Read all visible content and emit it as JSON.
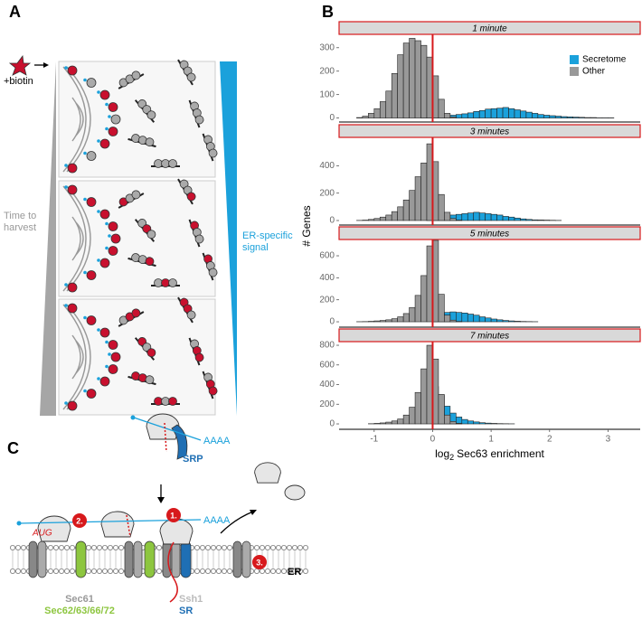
{
  "figure": {
    "panel_labels": [
      "A",
      "B",
      "C"
    ],
    "panel_a": {
      "treatment": "+biotin",
      "left_gradient": "Time to harvest",
      "right_gradient": "ER-specific signal"
    },
    "panel_c": {
      "polya": [
        "AAAA",
        "AAAA"
      ],
      "srp": "SRP",
      "steps": [
        "1.",
        "2.",
        "3."
      ],
      "start_codon": "AUG",
      "translocon": "Sec61",
      "complex": "Sec62/63/66/72",
      "ssh1": "Ssh1",
      "sr": "SR",
      "er": "ER"
    }
  },
  "chart_data": [
    {
      "type": "histogram",
      "title": "1 minute",
      "ylabel": "# Genes",
      "legend": "top-right",
      "vline": 0,
      "vline_color": "#d7191c",
      "xlim": [
        -1.6,
        3.55
      ],
      "ylim": [
        -17,
        357
      ],
      "yticks": [
        0,
        100,
        200,
        300
      ],
      "bins": [
        -1.3,
        -1.2,
        -1.1,
        -1,
        -0.9,
        -0.8,
        -0.7,
        -0.6,
        -0.5,
        -0.4,
        -0.3,
        -0.2,
        -0.1,
        0,
        0.1,
        0.2,
        0.3,
        0.4,
        0.5,
        0.6,
        0.7,
        0.8,
        0.9,
        1,
        1.1,
        1.2,
        1.3,
        1.4,
        1.5,
        1.6,
        1.7,
        1.8,
        1.9,
        2,
        2.1,
        2.2,
        2.3,
        2.4,
        2.5,
        2.6,
        2.7,
        2.8,
        2.9,
        3,
        3.1,
        3.2
      ],
      "series": [
        {
          "name": "Secretome",
          "color": "#1ba1db",
          "values": [
            0,
            0,
            0,
            0,
            0,
            0,
            0,
            0,
            0,
            0,
            0,
            2,
            3,
            5,
            8,
            10,
            12,
            15,
            18,
            22,
            28,
            32,
            38,
            40,
            42,
            45,
            40,
            35,
            30,
            25,
            20,
            15,
            12,
            10,
            8,
            6,
            5,
            4,
            3,
            2,
            2,
            1,
            1,
            1,
            0
          ]
        },
        {
          "name": "Other",
          "color": "#999999",
          "values": [
            2,
            8,
            20,
            40,
            70,
            115,
            190,
            270,
            320,
            340,
            330,
            310,
            260,
            180,
            80,
            20,
            5,
            0,
            0,
            0,
            0,
            0,
            0,
            0,
            0,
            0,
            0,
            0,
            0,
            0,
            0,
            0,
            0,
            0,
            0,
            0,
            0,
            0,
            0,
            0,
            0,
            0,
            0,
            0,
            0
          ]
        }
      ]
    },
    {
      "type": "histogram",
      "title": "3 minutes",
      "vline": 0,
      "vline_color": "#d7191c",
      "xlim": [
        -1.6,
        3.55
      ],
      "ylim": [
        -33,
        607
      ],
      "yticks": [
        0,
        200,
        400
      ],
      "bins": [
        -1.3,
        -1.2,
        -1.1,
        -1,
        -0.9,
        -0.8,
        -0.7,
        -0.6,
        -0.5,
        -0.4,
        -0.3,
        -0.2,
        -0.1,
        0,
        0.1,
        0.2,
        0.3,
        0.4,
        0.5,
        0.6,
        0.7,
        0.8,
        0.9,
        1,
        1.1,
        1.2,
        1.3,
        1.4,
        1.5,
        1.6,
        1.7,
        1.8,
        1.9,
        2,
        2.1,
        2.2,
        2.3,
        2.4,
        2.5,
        2.6,
        2.7,
        2.8,
        2.9,
        3,
        3.1,
        3.2
      ],
      "series": [
        {
          "name": "Secretome",
          "color": "#1ba1db",
          "values": [
            0,
            0,
            0,
            0,
            0,
            0,
            0,
            0,
            0,
            0,
            0,
            0,
            5,
            20,
            30,
            35,
            40,
            45,
            50,
            55,
            60,
            55,
            50,
            45,
            40,
            30,
            25,
            18,
            12,
            8,
            5,
            4,
            3,
            2,
            1,
            0,
            0,
            0,
            0,
            0,
            0,
            0,
            0,
            0,
            0
          ]
        },
        {
          "name": "Other",
          "color": "#999999",
          "values": [
            1,
            3,
            8,
            15,
            25,
            40,
            65,
            100,
            150,
            220,
            320,
            420,
            560,
            430,
            190,
            60,
            15,
            3,
            0,
            0,
            0,
            0,
            0,
            0,
            0,
            0,
            0,
            0,
            0,
            0,
            0,
            0,
            0,
            0,
            0,
            0,
            0,
            0,
            0,
            0,
            0,
            0,
            0,
            0,
            0
          ]
        }
      ]
    },
    {
      "type": "histogram",
      "title": "5 minutes",
      "vline": 0,
      "vline_color": "#d7191c",
      "xlim": [
        -1.6,
        3.55
      ],
      "ylim": [
        -49,
        748
      ],
      "yticks": [
        0,
        200,
        400,
        600
      ],
      "bins": [
        -1.3,
        -1.2,
        -1.1,
        -1,
        -0.9,
        -0.8,
        -0.7,
        -0.6,
        -0.5,
        -0.4,
        -0.3,
        -0.2,
        -0.1,
        0,
        0.1,
        0.2,
        0.3,
        0.4,
        0.5,
        0.6,
        0.7,
        0.8,
        0.9,
        1,
        1.1,
        1.2,
        1.3,
        1.4,
        1.5,
        1.6,
        1.7,
        1.8,
        1.9,
        2,
        2.1,
        2.2,
        2.3,
        2.4,
        2.5,
        2.6,
        2.7,
        2.8,
        2.9,
        3,
        3.1,
        3.2
      ],
      "series": [
        {
          "name": "Secretome",
          "color": "#1ba1db",
          "values": [
            0,
            0,
            0,
            0,
            0,
            0,
            0,
            0,
            0,
            0,
            0,
            0,
            0,
            30,
            60,
            85,
            90,
            85,
            80,
            70,
            60,
            45,
            35,
            25,
            18,
            12,
            8,
            5,
            3,
            2,
            1,
            0,
            0,
            0,
            0,
            0,
            0,
            0,
            0,
            0,
            0,
            0,
            0,
            0,
            0
          ]
        },
        {
          "name": "Other",
          "color": "#999999",
          "values": [
            1,
            2,
            4,
            8,
            12,
            18,
            28,
            45,
            75,
            130,
            240,
            420,
            690,
            740,
            250,
            60,
            15,
            3,
            0,
            0,
            0,
            0,
            0,
            0,
            0,
            0,
            0,
            0,
            0,
            0,
            0,
            0,
            0,
            0,
            0,
            0,
            0,
            0,
            0,
            0,
            0,
            0,
            0,
            0,
            0
          ]
        }
      ]
    },
    {
      "type": "histogram",
      "title": "7 minutes",
      "xlabel": {
        "prefix": "log",
        "subscript": "2",
        "text": "Sec63 enrichment"
      },
      "vline": 0,
      "vline_color": "#d7191c",
      "xlim": [
        -1.6,
        3.55
      ],
      "ylim": [
        -55,
        837
      ],
      "yticks": [
        0,
        200,
        400,
        600,
        800
      ],
      "xticks": [
        -1,
        0,
        1,
        2,
        3
      ],
      "bins": [
        -1.3,
        -1.2,
        -1.1,
        -1,
        -0.9,
        -0.8,
        -0.7,
        -0.6,
        -0.5,
        -0.4,
        -0.3,
        -0.2,
        -0.1,
        0,
        0.1,
        0.2,
        0.3,
        0.4,
        0.5,
        0.6,
        0.7,
        0.8,
        0.9,
        1,
        1.1,
        1.2,
        1.3,
        1.4,
        1.5,
        1.6,
        1.7,
        1.8,
        1.9,
        2,
        2.1,
        2.2,
        2.3,
        2.4,
        2.5,
        2.6,
        2.7,
        2.8,
        2.9,
        3,
        3.1,
        3.2
      ],
      "series": [
        {
          "name": "Secretome",
          "color": "#1ba1db",
          "values": [
            0,
            0,
            0,
            0,
            0,
            0,
            0,
            0,
            0,
            0,
            0,
            0,
            0,
            380,
            290,
            180,
            110,
            70,
            45,
            30,
            20,
            12,
            8,
            5,
            3,
            2,
            1,
            0,
            0,
            0,
            0,
            0,
            0,
            0,
            0,
            0,
            0,
            0,
            0,
            0,
            0,
            0,
            0,
            0,
            0
          ]
        },
        {
          "name": "Other",
          "color": "#999999",
          "values": [
            0,
            0,
            2,
            5,
            10,
            18,
            30,
            50,
            90,
            170,
            320,
            560,
            800,
            660,
            300,
            90,
            25,
            6,
            0,
            0,
            0,
            0,
            0,
            0,
            0,
            0,
            0,
            0,
            0,
            0,
            0,
            0,
            0,
            0,
            0,
            0,
            0,
            0,
            0,
            0,
            0,
            0,
            0,
            0,
            0
          ]
        }
      ]
    }
  ]
}
